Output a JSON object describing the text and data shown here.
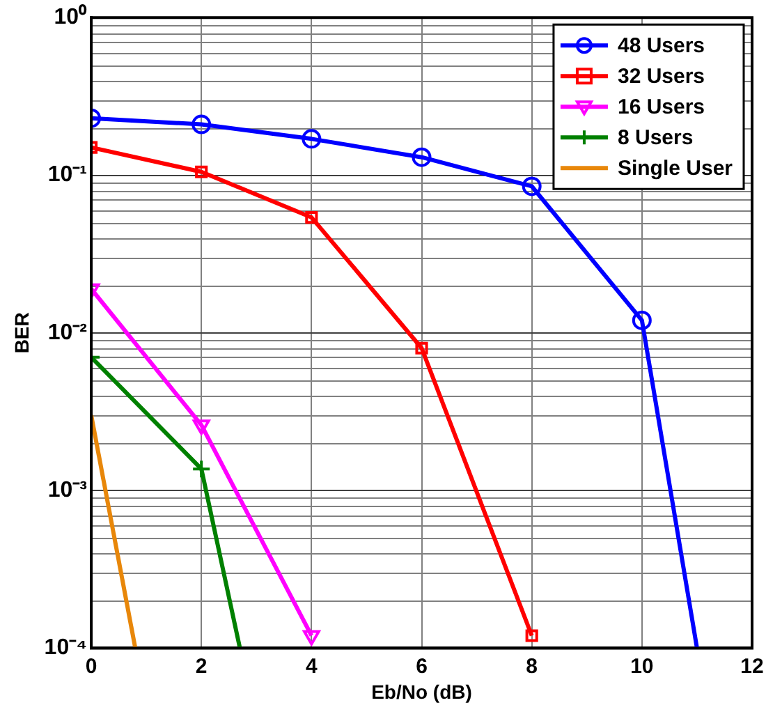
{
  "chart_data": {
    "type": "line",
    "xlabel": "Eb/No (dB)",
    "ylabel": "BER",
    "log": "y",
    "grid": true,
    "legend": "top right",
    "xlim": [
      0,
      12
    ],
    "xticks": [
      0,
      2,
      4,
      6,
      8,
      10,
      12
    ],
    "ylim": [
      0.0001,
      1
    ],
    "yticks": [
      {
        "value": 0.0001,
        "label": "10⁻⁴"
      },
      {
        "value": 0.001,
        "label": "10⁻³"
      },
      {
        "value": 0.01,
        "label": "10⁻²"
      },
      {
        "value": 0.1,
        "label": "10⁻¹"
      },
      {
        "value": 1,
        "label": "10⁰"
      }
    ],
    "line_style": "solid",
    "series": [
      {
        "name": "48 Users",
        "color": "#0000ff",
        "marker": "circle",
        "x": [
          0,
          2,
          4,
          6,
          8,
          10,
          11
        ],
        "values": [
          0.23,
          0.21,
          0.17,
          0.13,
          0.085,
          0.012,
          0.0001
        ]
      },
      {
        "name": "32 Users",
        "color": "#ff0000",
        "marker": "square",
        "x": [
          0,
          2,
          4,
          6,
          8
        ],
        "values": [
          0.15,
          0.105,
          0.054,
          0.008,
          0.00012
        ]
      },
      {
        "name": "16 Users",
        "color": "#ff00ff",
        "marker": "triangle",
        "x": [
          0,
          2,
          4
        ],
        "values": [
          0.019,
          0.0026,
          0.00012
        ]
      },
      {
        "name": "8 Users",
        "color": "#008000",
        "marker": "cross",
        "x": [
          0,
          2,
          2.7
        ],
        "values": [
          0.007,
          0.00137,
          0.0001
        ]
      },
      {
        "name": "Single User",
        "color": "#e8870a",
        "marker": "none",
        "x": [
          0,
          0.8
        ],
        "values": [
          0.003,
          0.0001
        ]
      }
    ]
  }
}
